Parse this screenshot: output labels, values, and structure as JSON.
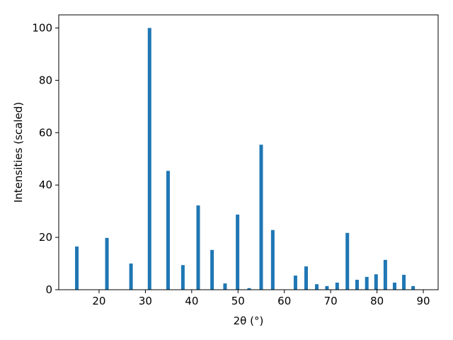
{
  "chart_data": {
    "type": "bar",
    "xlabel": "2θ (°)",
    "ylabel": "Intensities (scaled)",
    "xlim": [
      11.3,
      93.2
    ],
    "ylim": [
      0,
      105
    ],
    "xticks": [
      20,
      30,
      40,
      50,
      60,
      70,
      80,
      90
    ],
    "yticks": [
      0,
      20,
      40,
      60,
      80,
      100
    ],
    "bar_color": "#1f77b4",
    "grid": false,
    "x": [
      15.2,
      21.7,
      26.9,
      30.9,
      34.9,
      38.1,
      41.4,
      44.4,
      47.2,
      49.9,
      52.4,
      55.0,
      57.5,
      62.4,
      64.7,
      67.0,
      69.2,
      71.4,
      73.6,
      75.7,
      77.8,
      79.8,
      81.8,
      83.8,
      85.8,
      87.8
    ],
    "values": [
      16.5,
      19.8,
      10.0,
      100.0,
      45.4,
      9.4,
      32.2,
      15.2,
      2.4,
      28.7,
      0.6,
      55.4,
      22.8,
      5.4,
      8.9,
      2.1,
      1.4,
      2.7,
      21.7,
      3.8,
      4.9,
      5.9,
      11.4,
      2.7,
      5.7,
      1.4
    ]
  }
}
